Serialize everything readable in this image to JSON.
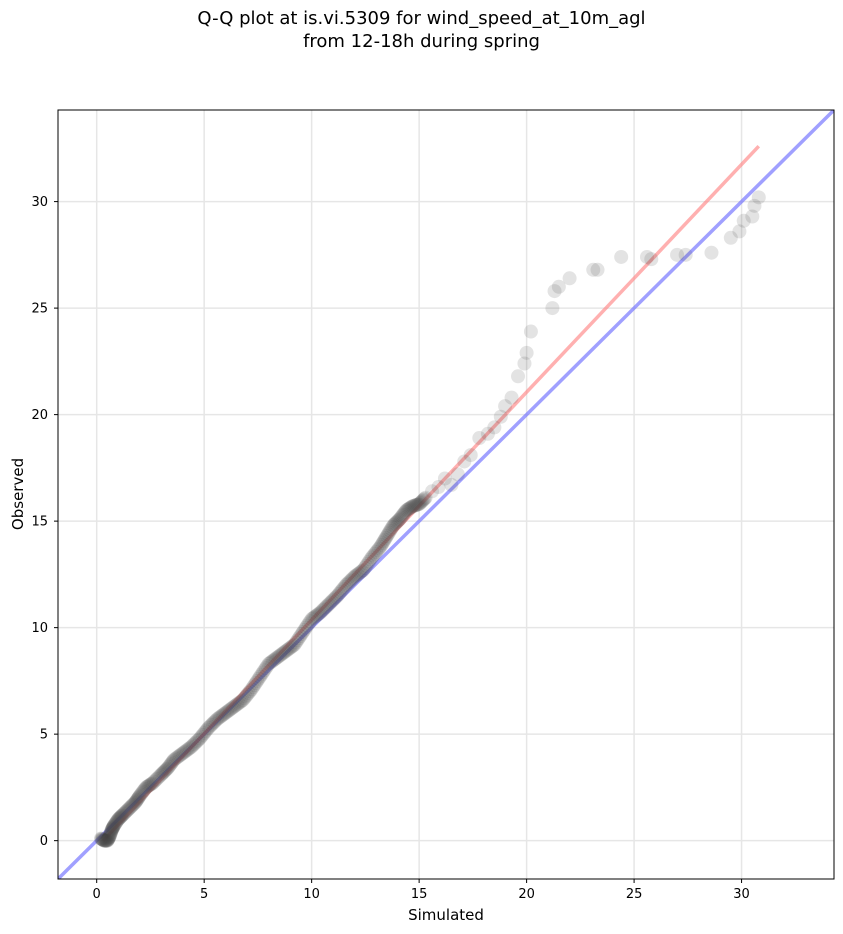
{
  "chart_data": {
    "type": "scatter",
    "title": "Q-Q plot at is.vi.5309 for wind_speed_at_10m_agl\nfrom 12-18h during spring",
    "xlabel": "Simulated",
    "ylabel": "Observed",
    "xlim": [
      -1.8,
      34.3
    ],
    "ylim": [
      -1.8,
      34.3
    ],
    "xticks": [
      0,
      5,
      10,
      15,
      20,
      25,
      30
    ],
    "yticks": [
      0,
      5,
      10,
      15,
      20,
      25,
      30
    ],
    "grid": true,
    "reference_lines": [
      {
        "type": "identity",
        "color": "#6666ff",
        "x": [
          -1.8,
          34.3
        ],
        "y": [
          -1.8,
          34.3
        ]
      },
      {
        "type": "fit",
        "color": "#ff7f7f",
        "x": [
          0.3,
          30.8
        ],
        "y": [
          0.0,
          32.6
        ]
      }
    ],
    "quantiles": {
      "x": [
        0.2,
        0.35,
        0.5,
        0.6,
        0.7,
        0.8,
        1.0,
        1.2,
        1.5,
        1.8,
        2.0,
        2.3,
        2.6,
        3.0,
        3.3,
        3.6,
        4.0,
        4.4,
        4.8,
        5.2,
        5.6,
        6.0,
        6.4,
        6.8,
        7.2,
        7.6,
        8.0,
        8.4,
        8.8,
        9.2,
        9.6,
        10.0,
        10.4,
        10.8,
        11.2,
        11.6,
        12.0,
        12.4,
        12.8,
        13.2,
        13.5,
        13.8,
        14.1,
        14.4,
        14.7,
        15.0,
        15.3,
        15.6,
        15.9,
        16.2,
        16.5,
        16.8,
        17.1,
        17.4,
        17.8,
        18.2,
        18.5,
        18.8,
        19.0,
        19.3,
        19.6,
        19.9,
        20.0,
        20.2,
        21.2,
        21.3,
        21.5,
        22.0,
        23.1,
        23.3,
        24.4,
        25.6,
        25.8,
        27.0,
        27.4,
        28.6,
        29.5,
        29.9,
        30.1,
        30.5,
        30.6,
        30.8
      ],
      "y": [
        0.1,
        0.0,
        0.0,
        0.2,
        0.5,
        0.7,
        1.0,
        1.2,
        1.5,
        1.8,
        2.1,
        2.5,
        2.7,
        3.1,
        3.4,
        3.8,
        4.1,
        4.4,
        4.8,
        5.3,
        5.7,
        6.0,
        6.3,
        6.6,
        7.1,
        7.7,
        8.3,
        8.6,
        8.9,
        9.2,
        9.8,
        10.4,
        10.7,
        11.1,
        11.5,
        12.0,
        12.4,
        12.7,
        13.3,
        13.8,
        14.3,
        14.8,
        15.1,
        15.5,
        15.7,
        15.8,
        16.1,
        16.4,
        16.6,
        17.0,
        16.7,
        17.2,
        17.8,
        18.1,
        18.9,
        19.1,
        19.4,
        19.9,
        20.4,
        20.8,
        21.8,
        22.4,
        22.9,
        23.9,
        25.0,
        25.8,
        26.0,
        26.4,
        26.8,
        26.8,
        27.4,
        27.4,
        27.3,
        27.5,
        27.5,
        27.6,
        28.3,
        28.6,
        29.1,
        29.3,
        29.8,
        30.2
      ]
    }
  }
}
